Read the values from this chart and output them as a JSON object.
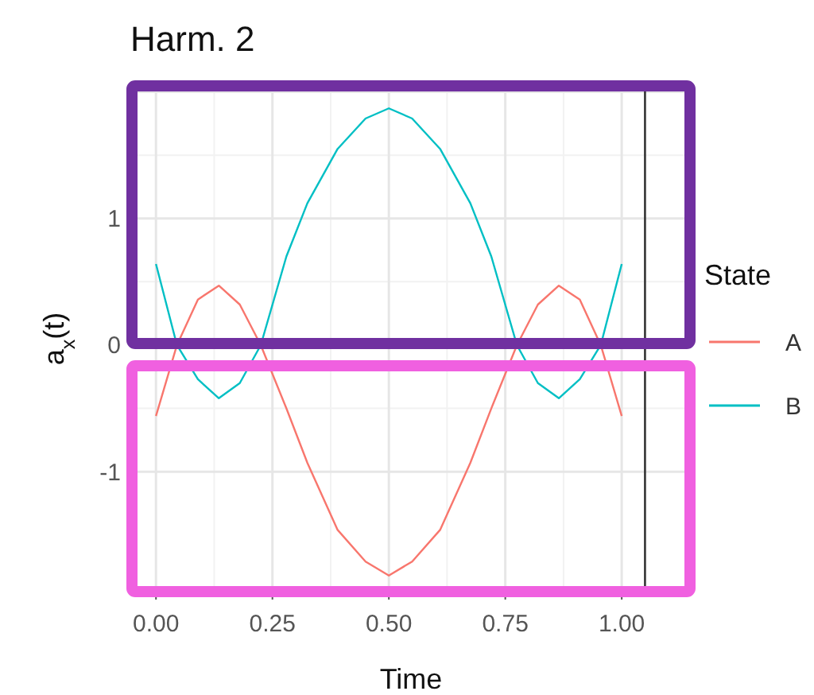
{
  "chart_data": {
    "type": "line",
    "title": "Harm. 2",
    "xlabel": "Time",
    "ylabel": "a$_{x}$(t)",
    "legend_title": "State",
    "x": [
      0,
      0.045,
      0.09,
      0.135,
      0.18,
      0.225,
      0.28,
      0.325,
      0.39,
      0.45,
      0.5,
      0.55,
      0.61,
      0.675,
      0.72,
      0.775,
      0.82,
      0.865,
      0.91,
      0.955,
      1
    ],
    "series": [
      {
        "name": "A",
        "color": "#f8766d",
        "values": [
          -0.56,
          0,
          0.36,
          0.47,
          0.32,
          0,
          -0.5,
          -0.93,
          -1.46,
          -1.71,
          -1.82,
          -1.71,
          -1.46,
          -0.93,
          -0.5,
          0,
          0.32,
          0.47,
          0.36,
          0,
          -0.56
        ]
      },
      {
        "name": "B",
        "color": "#00bfc4",
        "values": [
          0.64,
          0,
          -0.27,
          -0.42,
          -0.3,
          0,
          0.7,
          1.12,
          1.55,
          1.79,
          1.87,
          1.79,
          1.55,
          1.12,
          0.7,
          0,
          -0.3,
          -0.42,
          -0.27,
          0,
          0.64
        ]
      }
    ],
    "xlim": [
      -0.055,
      1.15
    ],
    "ylim": [
      -1.96,
      2.06
    ],
    "xticks": [
      {
        "value": 0,
        "label": "0.00"
      },
      {
        "value": 0.25,
        "label": "0.25"
      },
      {
        "value": 0.5,
        "label": "0.50"
      },
      {
        "value": 0.75,
        "label": "0.75"
      },
      {
        "value": 1,
        "label": "1.00"
      }
    ],
    "yticks": [
      -1,
      0,
      1
    ],
    "ref_lines": [
      {
        "axis": "x",
        "value": 1.05,
        "color": "#333333"
      }
    ],
    "grid": true,
    "legend": "right",
    "marker": "none",
    "line_style": "solid"
  }
}
